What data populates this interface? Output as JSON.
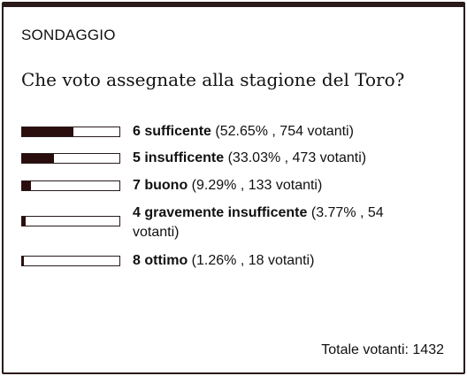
{
  "poll": {
    "kicker": "SONDAGGIO",
    "question": "Che voto assegnate alla stagione del Toro?",
    "total_label": "Totale votanti: 1432",
    "bar_color": "#2a0d0d",
    "options": [
      {
        "label": "6 sufficente",
        "stats": "(52.65% , 754 votanti)",
        "percent": 52.65
      },
      {
        "label": "5 insufficente",
        "stats": "(33.03% , 473 votanti)",
        "percent": 33.03
      },
      {
        "label": "7 buono",
        "stats": "(9.29% , 133 votanti)",
        "percent": 9.29
      },
      {
        "label": "4 gravemente insufficente",
        "stats": "(3.77% , 54 votanti)",
        "percent": 3.77
      },
      {
        "label": "8 ottimo",
        "stats": "(1.26% , 18 votanti)",
        "percent": 1.26
      }
    ]
  }
}
